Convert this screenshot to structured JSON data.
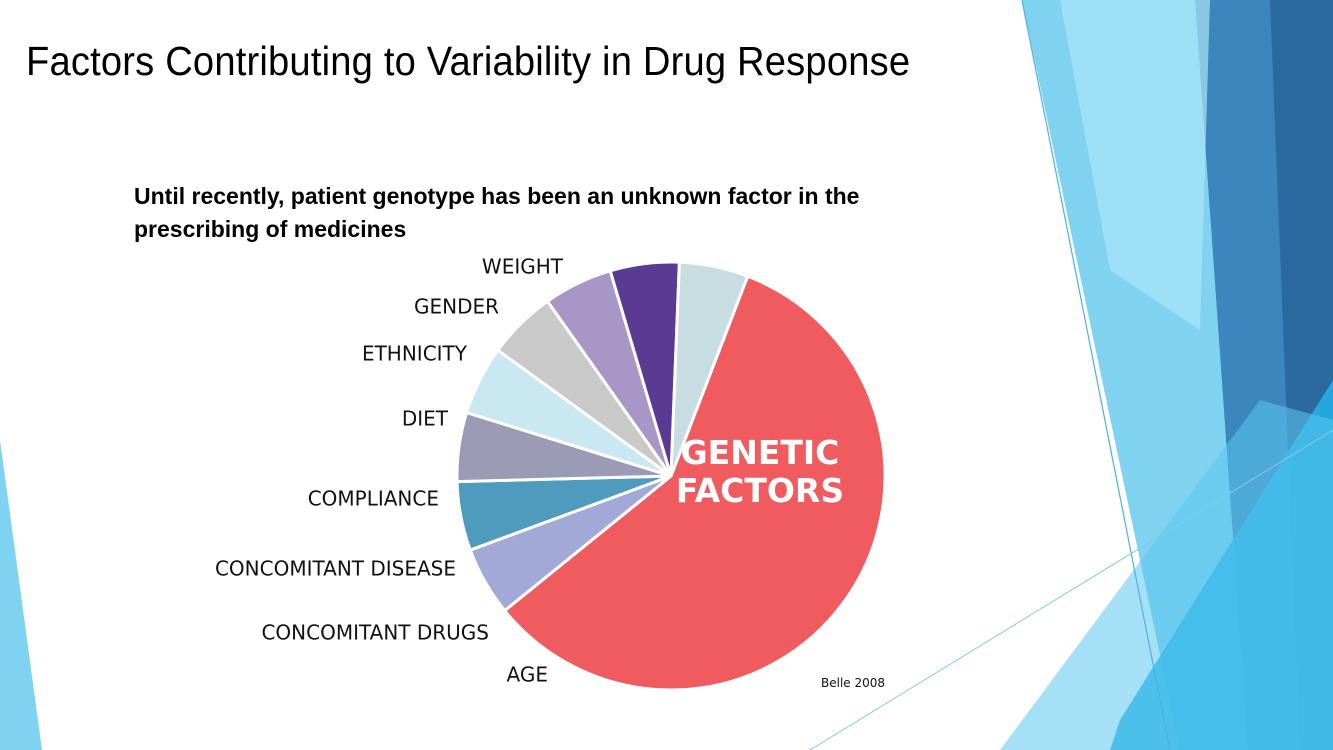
{
  "slide": {
    "title": "Factors Contributing to Variability in Drug Response",
    "subtitle": "Until recently, patient genotype has been an unknown factor in the prescribing of medicines",
    "citation": "Belle 2008"
  },
  "chart_data": {
    "type": "pie",
    "title": "",
    "slices": [
      {
        "label": "GENETIC FACTORS",
        "value": 56,
        "color": "#ef5b5f"
      },
      {
        "label": "AGE",
        "value": 5,
        "color": "#a3a9d6"
      },
      {
        "label": "CONCOMITANT DRUGS",
        "value": 5,
        "color": "#4f9bbd"
      },
      {
        "label": "CONCOMITANT  DISEASE",
        "value": 5,
        "color": "#9c9bb6"
      },
      {
        "label": "COMPLIANCE",
        "value": 5,
        "color": "#cae8f2"
      },
      {
        "label": "DIET",
        "value": 5,
        "color": "#c9c9c9"
      },
      {
        "label": "ETHNICITY",
        "value": 5,
        "color": "#a896c6"
      },
      {
        "label": "GENDER",
        "value": 5,
        "color": "#5b3a93"
      },
      {
        "label": "WEIGHT",
        "value": 5,
        "color": "#c7dde2"
      }
    ],
    "start_angle_deg": 21
  }
}
